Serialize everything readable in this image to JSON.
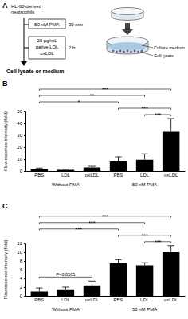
{
  "scheme": {
    "label": "A",
    "cells": [
      "HL-60-derived",
      "neutrophils"
    ],
    "step1": {
      "treatment": [
        "50 nM PMA"
      ],
      "time": "30 min"
    },
    "step2": {
      "treatment": [
        "20 μg/mL",
        "native LDL",
        "oxLDL"
      ],
      "time": "2 h"
    },
    "result": "Cell lysate or medium",
    "dish_labels": [
      "Culture medium",
      "Cell lysate"
    ]
  },
  "chart_data": [
    {
      "type": "bar",
      "title": "B",
      "y_label": "Fluorescence intensity (fold)",
      "categories": [
        "PBS",
        "LDL",
        "oxLDL",
        "PBS",
        "LDL",
        "oxLDL"
      ],
      "values": [
        1.5,
        1,
        3,
        8,
        9.5,
        33
      ],
      "errors": [
        1,
        0.5,
        1,
        4,
        5,
        11
      ],
      "color": "#000000",
      "ylim": [
        0,
        50
      ],
      "yticks": [
        0,
        10,
        20,
        30,
        40,
        50
      ],
      "groups": [
        {
          "label": "Without PMA",
          "from": 0,
          "to": 2
        },
        {
          "label": "50 nM PMA",
          "from": 3,
          "to": 5
        }
      ],
      "comparisons": [
        {
          "from": 4,
          "to": 5,
          "label": "***"
        },
        {
          "from": 3,
          "to": 5,
          "label": "***"
        },
        {
          "from": 0,
          "to": 3,
          "label": "*"
        },
        {
          "from": 0,
          "to": 4,
          "label": "**"
        },
        {
          "from": 0,
          "to": 5,
          "label": "***"
        }
      ]
    },
    {
      "type": "bar",
      "title": "C",
      "y_label": "Fluorescence intensity (fold)",
      "categories": [
        "PBS",
        "LDL",
        "oxLDL",
        "PBS",
        "LDL",
        "oxLDL"
      ],
      "values": [
        1,
        1.5,
        2.4,
        7.5,
        7,
        10
      ],
      "errors": [
        0.8,
        0.5,
        1,
        0.8,
        0.6,
        1.5
      ],
      "color": "#000000",
      "ylim": [
        0,
        12
      ],
      "yticks": [
        0,
        2,
        4,
        6,
        8,
        10,
        12
      ],
      "groups": [
        {
          "label": "Without PMA",
          "from": 0,
          "to": 2
        },
        {
          "label": "50 nM PMA",
          "from": 3,
          "to": 5
        }
      ],
      "comparisons": [
        {
          "from": 0,
          "to": 2,
          "label": "P=0.0505"
        },
        {
          "from": 4,
          "to": 5,
          "label": "***"
        },
        {
          "from": 3,
          "to": 5,
          "label": "***"
        },
        {
          "from": 0,
          "to": 3,
          "label": "***"
        },
        {
          "from": 0,
          "to": 4,
          "label": "***"
        },
        {
          "from": 0,
          "to": 5,
          "label": "***"
        }
      ]
    }
  ]
}
